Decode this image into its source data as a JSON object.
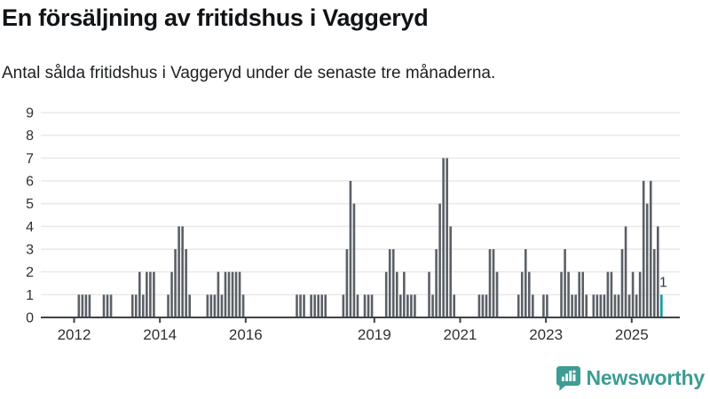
{
  "header": {
    "title": "En försäljning av fritidshus i Vaggeryd",
    "subtitle": "Antal sålda fritidshus i Vaggeryd under de senaste tre månaderna."
  },
  "branding": {
    "logo_text": "Newsworthy",
    "logo_icon": "bar-chart-speech-bubble-icon"
  },
  "colors": {
    "bar": "#5b6067",
    "highlight": "#0e9c9c",
    "grid": "#e9e9ea",
    "axis": "#3f4347",
    "tick_label": "#2e3236",
    "annotation": "#33383c",
    "brand": "#3d9c94",
    "title_text": "#111417"
  },
  "chart_data": {
    "type": "bar",
    "title": "En försäljning av fritidshus i Vaggeryd",
    "subtitle": "Antal sålda fritidshus i Vaggeryd under de senaste tre månaderna.",
    "xlabel": "",
    "ylabel": "",
    "ylim": [
      0,
      9
    ],
    "yticks": [
      0,
      1,
      2,
      3,
      4,
      5,
      6,
      7,
      8,
      9
    ],
    "xticks": [
      2012,
      2014,
      2016,
      2019,
      2021,
      2023,
      2025
    ],
    "grid": "horizontal",
    "legend": "none",
    "unit": "sold vacation homes per rolling 3 months",
    "start_month": "2011-04",
    "end_month": "2025-09",
    "months": [
      [
        "2012-02",
        1
      ],
      [
        "2012-03",
        1
      ],
      [
        "2012-04",
        1
      ],
      [
        "2012-05",
        1
      ],
      [
        "2012-09",
        1
      ],
      [
        "2012-10",
        1
      ],
      [
        "2012-11",
        1
      ],
      [
        "2013-05",
        1
      ],
      [
        "2013-06",
        1
      ],
      [
        "2013-07",
        2
      ],
      [
        "2013-08",
        1
      ],
      [
        "2013-09",
        2
      ],
      [
        "2013-10",
        2
      ],
      [
        "2013-11",
        2
      ],
      [
        "2014-03",
        1
      ],
      [
        "2014-04",
        2
      ],
      [
        "2014-05",
        3
      ],
      [
        "2014-06",
        4
      ],
      [
        "2014-07",
        4
      ],
      [
        "2014-08",
        3
      ],
      [
        "2014-09",
        1
      ],
      [
        "2015-02",
        1
      ],
      [
        "2015-03",
        1
      ],
      [
        "2015-04",
        1
      ],
      [
        "2015-05",
        2
      ],
      [
        "2015-06",
        1
      ],
      [
        "2015-07",
        2
      ],
      [
        "2015-08",
        2
      ],
      [
        "2015-09",
        2
      ],
      [
        "2015-10",
        2
      ],
      [
        "2015-11",
        2
      ],
      [
        "2015-12",
        1
      ],
      [
        "2017-03",
        1
      ],
      [
        "2017-04",
        1
      ],
      [
        "2017-05",
        1
      ],
      [
        "2017-07",
        1
      ],
      [
        "2017-08",
        1
      ],
      [
        "2017-09",
        1
      ],
      [
        "2017-10",
        1
      ],
      [
        "2017-11",
        1
      ],
      [
        "2018-04",
        1
      ],
      [
        "2018-05",
        3
      ],
      [
        "2018-06",
        6
      ],
      [
        "2018-07",
        5
      ],
      [
        "2018-08",
        1
      ],
      [
        "2018-10",
        1
      ],
      [
        "2018-11",
        1
      ],
      [
        "2018-12",
        1
      ],
      [
        "2019-04",
        2
      ],
      [
        "2019-05",
        3
      ],
      [
        "2019-06",
        3
      ],
      [
        "2019-07",
        2
      ],
      [
        "2019-08",
        1
      ],
      [
        "2019-09",
        2
      ],
      [
        "2019-10",
        1
      ],
      [
        "2019-11",
        1
      ],
      [
        "2019-12",
        1
      ],
      [
        "2020-04",
        2
      ],
      [
        "2020-05",
        1
      ],
      [
        "2020-06",
        3
      ],
      [
        "2020-07",
        5
      ],
      [
        "2020-08",
        7
      ],
      [
        "2020-09",
        7
      ],
      [
        "2020-10",
        4
      ],
      [
        "2020-11",
        1
      ],
      [
        "2021-06",
        1
      ],
      [
        "2021-07",
        1
      ],
      [
        "2021-08",
        1
      ],
      [
        "2021-09",
        3
      ],
      [
        "2021-10",
        3
      ],
      [
        "2021-11",
        2
      ],
      [
        "2022-05",
        1
      ],
      [
        "2022-06",
        2
      ],
      [
        "2022-07",
        3
      ],
      [
        "2022-08",
        2
      ],
      [
        "2022-09",
        1
      ],
      [
        "2022-12",
        1
      ],
      [
        "2023-01",
        1
      ],
      [
        "2023-05",
        2
      ],
      [
        "2023-06",
        3
      ],
      [
        "2023-07",
        2
      ],
      [
        "2023-08",
        1
      ],
      [
        "2023-09",
        1
      ],
      [
        "2023-10",
        2
      ],
      [
        "2023-11",
        2
      ],
      [
        "2023-12",
        1
      ],
      [
        "2024-02",
        1
      ],
      [
        "2024-03",
        1
      ],
      [
        "2024-04",
        1
      ],
      [
        "2024-05",
        1
      ],
      [
        "2024-06",
        2
      ],
      [
        "2024-07",
        2
      ],
      [
        "2024-08",
        1
      ],
      [
        "2024-09",
        1
      ],
      [
        "2024-10",
        3
      ],
      [
        "2024-11",
        4
      ],
      [
        "2024-12",
        1
      ],
      [
        "2025-01",
        2
      ],
      [
        "2025-02",
        1
      ],
      [
        "2025-03",
        2
      ],
      [
        "2025-04",
        6
      ],
      [
        "2025-05",
        5
      ],
      [
        "2025-06",
        6
      ],
      [
        "2025-07",
        3
      ],
      [
        "2025-08",
        4
      ],
      [
        "2025-09",
        1
      ]
    ],
    "highlight": {
      "month": "2025-09",
      "value": 1,
      "label": "1"
    }
  }
}
